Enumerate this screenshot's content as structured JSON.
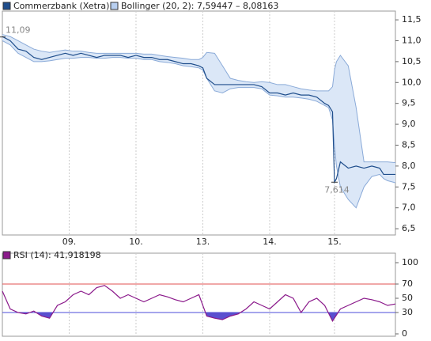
{
  "chart_data": [
    {
      "type": "line",
      "x": [
        0,
        2,
        4,
        6,
        8,
        10,
        12,
        14,
        16,
        18,
        20,
        22,
        24,
        26,
        28,
        30,
        32,
        34,
        36,
        38,
        40,
        42,
        44,
        46,
        48,
        50,
        51,
        52,
        54,
        56,
        58,
        60,
        62,
        64,
        66,
        68,
        70,
        72,
        74,
        76,
        78,
        80,
        82,
        83,
        84,
        84.5,
        85,
        86,
        88,
        90,
        92,
        94,
        96,
        97,
        98,
        100
      ],
      "series": [
        {
          "name": "Commerzbank (Xetra)",
          "color": "#1f4e8c",
          "values": [
            11.1,
            11.0,
            10.8,
            10.75,
            10.6,
            10.55,
            10.6,
            10.65,
            10.7,
            10.65,
            10.7,
            10.65,
            10.6,
            10.65,
            10.65,
            10.65,
            10.6,
            10.65,
            10.6,
            10.6,
            10.55,
            10.55,
            10.5,
            10.45,
            10.45,
            10.4,
            10.35,
            10.1,
            9.95,
            9.95,
            9.95,
            9.95,
            9.95,
            9.95,
            9.9,
            9.75,
            9.75,
            9.7,
            9.75,
            9.7,
            9.7,
            9.65,
            9.5,
            9.45,
            9.3,
            7.614,
            7.7,
            8.1,
            7.95,
            8.0,
            7.95,
            8.0,
            7.95,
            7.8,
            7.8,
            7.8
          ]
        }
      ],
      "bands": [
        {
          "name": "Bollinger (20, 2): 7,59447 – 8,08163",
          "color": "#dbe7f7",
          "edge_color": "#8aaad8",
          "upper": [
            11.15,
            11.1,
            11.0,
            10.9,
            10.8,
            10.75,
            10.72,
            10.75,
            10.78,
            10.75,
            10.75,
            10.72,
            10.7,
            10.7,
            10.7,
            10.7,
            10.7,
            10.7,
            10.68,
            10.68,
            10.65,
            10.62,
            10.6,
            10.58,
            10.55,
            10.55,
            10.6,
            10.72,
            10.7,
            10.4,
            10.1,
            10.05,
            10.02,
            10.0,
            10.02,
            10.0,
            9.95,
            9.95,
            9.9,
            9.85,
            9.82,
            9.8,
            9.8,
            9.8,
            9.9,
            10.3,
            10.5,
            10.65,
            10.4,
            9.4,
            8.1,
            8.1,
            8.1,
            8.1,
            8.1,
            8.08
          ],
          "lower": [
            11.0,
            10.9,
            10.7,
            10.6,
            10.5,
            10.5,
            10.52,
            10.55,
            10.58,
            10.58,
            10.6,
            10.6,
            10.58,
            10.58,
            10.6,
            10.6,
            10.58,
            10.58,
            10.55,
            10.55,
            10.5,
            10.48,
            10.45,
            10.4,
            10.38,
            10.35,
            10.3,
            10.1,
            9.8,
            9.75,
            9.85,
            9.88,
            9.88,
            9.88,
            9.85,
            9.7,
            9.68,
            9.65,
            9.65,
            9.63,
            9.6,
            9.55,
            9.45,
            9.4,
            9.1,
            8.5,
            8.0,
            7.5,
            7.2,
            7.0,
            7.5,
            7.75,
            7.8,
            7.7,
            7.65,
            7.6
          ]
        }
      ],
      "annotations": [
        {
          "x": 0,
          "value": 11.09,
          "label": "11,09"
        },
        {
          "x": 84.5,
          "value": 7.614,
          "label": "7,614"
        }
      ],
      "xlim": [
        0,
        100
      ],
      "xticks": [
        {
          "value": 17,
          "label": "09."
        },
        {
          "value": 34,
          "label": "10."
        },
        {
          "value": 51,
          "label": "13."
        },
        {
          "value": 68,
          "label": "14."
        },
        {
          "value": 84.5,
          "label": "15."
        }
      ],
      "ylim": [
        6.35,
        11.71
      ],
      "yticks": [
        {
          "value": 6.5,
          "label": "6,5"
        },
        {
          "value": 7.0,
          "label": "7,0"
        },
        {
          "value": 7.5,
          "label": "7,5"
        },
        {
          "value": 8.0,
          "label": "8,0"
        },
        {
          "value": 8.5,
          "label": "8,5"
        },
        {
          "value": 9.0,
          "label": "9,0"
        },
        {
          "value": 9.5,
          "label": "9,5"
        },
        {
          "value": 10.0,
          "label": "10,0"
        },
        {
          "value": 10.5,
          "label": "10,5"
        },
        {
          "value": 11.0,
          "label": "11,0"
        },
        {
          "value": 11.5,
          "label": "11,5"
        }
      ],
      "grid": true
    },
    {
      "type": "line",
      "x": [
        0,
        2,
        4,
        6,
        8,
        10,
        12,
        14,
        16,
        18,
        20,
        22,
        24,
        26,
        28,
        30,
        32,
        34,
        36,
        38,
        40,
        42,
        44,
        46,
        48,
        50,
        52,
        54,
        56,
        58,
        60,
        62,
        64,
        66,
        68,
        70,
        72,
        74,
        76,
        78,
        80,
        82,
        84,
        86,
        88,
        90,
        92,
        94,
        96,
        98,
        100
      ],
      "series": [
        {
          "name": "RSI (14): 41,918198",
          "color": "#8b1a8b",
          "fill": "#5a4fcf",
          "values": [
            60,
            35,
            30,
            28,
            32,
            25,
            22,
            40,
            45,
            55,
            60,
            55,
            65,
            68,
            60,
            50,
            55,
            50,
            45,
            50,
            55,
            52,
            48,
            45,
            50,
            55,
            25,
            22,
            20,
            25,
            28,
            35,
            45,
            40,
            35,
            45,
            55,
            50,
            30,
            45,
            50,
            40,
            18,
            35,
            40,
            45,
            50,
            48,
            45,
            40,
            42
          ]
        }
      ],
      "reference_lines": [
        {
          "value": 70,
          "color": "#e05050"
        },
        {
          "value": 30,
          "color": "#4b4bd8"
        }
      ],
      "xlim": [
        0,
        100
      ],
      "ylim": [
        0,
        100
      ],
      "yticks": [
        0,
        30,
        50,
        70,
        100
      ],
      "grid": true
    }
  ]
}
